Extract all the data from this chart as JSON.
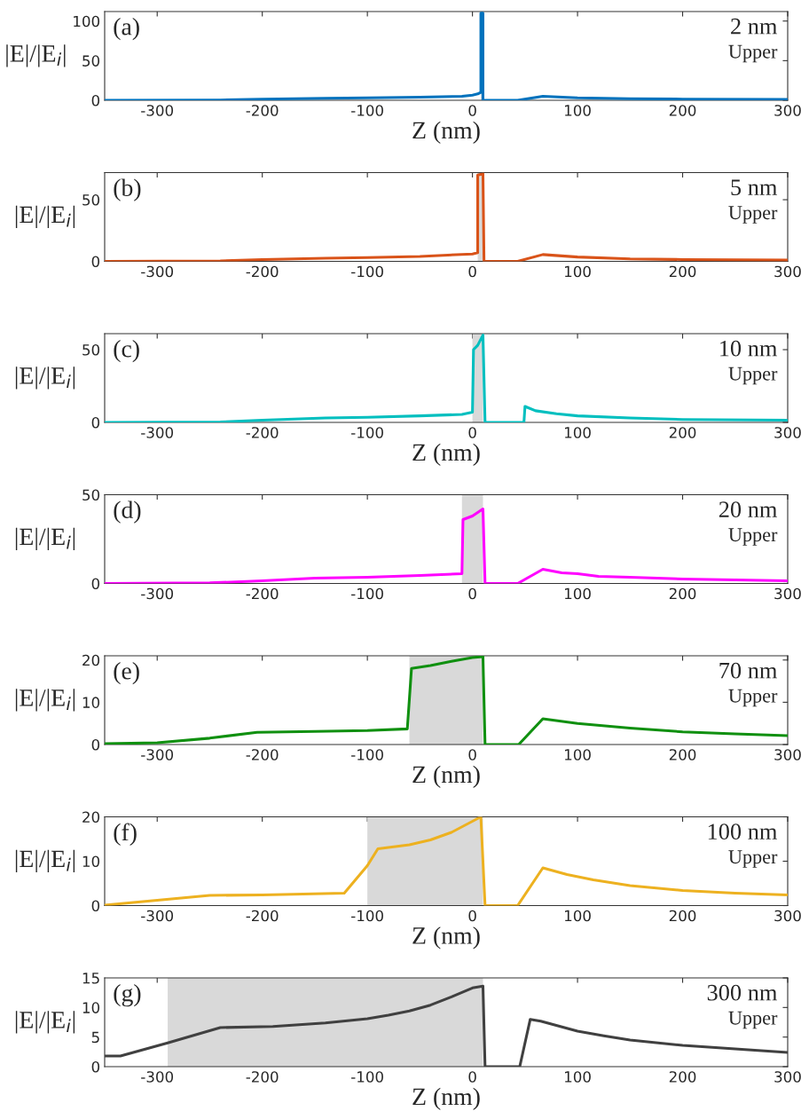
{
  "chart_data": [
    {
      "type": "line",
      "ylabel": "|E|/|E$_{i}$|",
      "xlabel": "Z (nm)",
      "annotations": [
        "(a)",
        "2 nm",
        "Upper"
      ],
      "xlim": [
        -350,
        300
      ],
      "xticks": [
        -300,
        -200,
        -100,
        0,
        100,
        200,
        300
      ],
      "ylim": [
        0,
        112
      ],
      "yticks": [
        0,
        50,
        100
      ],
      "grid": false,
      "legend": false,
      "bands": [
        {
          "axis": "x",
          "from": 8,
          "to": 10,
          "color": "#d9d9d9"
        }
      ],
      "series": [
        {
          "color": "#0072bd",
          "x": [
            -350,
            -240,
            -200,
            -140,
            -100,
            -50,
            -10,
            0,
            5,
            8,
            8,
            10,
            10,
            43,
            67,
            100,
            150,
            200,
            300
          ],
          "values": [
            0,
            0.3,
            1.5,
            2.5,
            3,
            4,
            5,
            6.5,
            8,
            10,
            110,
            110,
            0,
            0,
            5,
            3,
            2,
            1.5,
            1
          ]
        }
      ]
    },
    {
      "type": "line",
      "ylabel": "|E|/|E$_{i}$|",
      "annotations": [
        "(b)",
        "5 nm",
        "Upper"
      ],
      "xlim": [
        -350,
        300
      ],
      "xticks": [
        -300,
        -200,
        -100,
        0,
        100,
        200,
        300
      ],
      "ylim": [
        0,
        72
      ],
      "yticks": [
        0,
        50
      ],
      "grid": false,
      "legend": false,
      "bands": [
        {
          "axis": "x",
          "from": 5,
          "to": 10,
          "color": "#d9d9d9"
        }
      ],
      "series": [
        {
          "color": "#d95319",
          "x": [
            -350,
            -240,
            -200,
            -140,
            -100,
            -50,
            0,
            5,
            5,
            10,
            11,
            43,
            67,
            100,
            150,
            200,
            300
          ],
          "values": [
            0,
            0.3,
            1.5,
            2.5,
            3,
            4,
            6,
            7,
            70,
            71,
            0,
            0,
            5.5,
            3.5,
            2,
            1.5,
            1
          ]
        }
      ]
    },
    {
      "type": "line",
      "ylabel": "|E|/|E$_{i}$|",
      "xlabel": "Z (nm)",
      "annotations": [
        "(c)",
        "10 nm",
        "Upper"
      ],
      "xlim": [
        -350,
        300
      ],
      "xticks": [
        -300,
        -200,
        -100,
        0,
        100,
        200,
        300
      ],
      "ylim": [
        0,
        61
      ],
      "yticks": [
        0,
        50
      ],
      "grid": false,
      "legend": false,
      "bands": [
        {
          "axis": "x",
          "from": 0,
          "to": 10,
          "color": "#d9d9d9"
        }
      ],
      "series": [
        {
          "color": "#00bfbf",
          "x": [
            -350,
            -240,
            -200,
            -140,
            -100,
            -50,
            -10,
            0,
            1,
            5,
            10,
            12,
            49,
            50,
            60,
            80,
            100,
            150,
            200,
            300
          ],
          "values": [
            0,
            0.3,
            1.5,
            3,
            3.5,
            4.5,
            5.5,
            7,
            50,
            53,
            60,
            0,
            0,
            11,
            8,
            6,
            4.5,
            3,
            2,
            1.5
          ]
        }
      ]
    },
    {
      "type": "line",
      "ylabel": "|E|/|E$_{i}$|",
      "annotations": [
        "(d)",
        "20 nm",
        "Upper"
      ],
      "xlim": [
        -350,
        300
      ],
      "xticks": [
        -300,
        -200,
        -100,
        0,
        100,
        200,
        300
      ],
      "ylim": [
        0,
        50
      ],
      "yticks": [
        0,
        50
      ],
      "grid": false,
      "legend": false,
      "bands": [
        {
          "axis": "x",
          "from": -10,
          "to": 10,
          "color": "#d9d9d9"
        }
      ],
      "series": [
        {
          "color": "#ff00ff",
          "x": [
            -350,
            -250,
            -200,
            -150,
            -100,
            -50,
            -10,
            -9,
            0,
            10,
            12,
            43,
            67,
            85,
            100,
            120,
            150,
            200,
            300
          ],
          "values": [
            0,
            0.3,
            1.5,
            3,
            3.5,
            4.5,
            5.5,
            36,
            38,
            42,
            0,
            0,
            8,
            6,
            5.5,
            4,
            3.5,
            2.5,
            1.5
          ]
        }
      ]
    },
    {
      "type": "line",
      "ylabel": "|E|/|E$_{i}$|",
      "xlabel": "Z (nm)",
      "annotations": [
        "(e)",
        "70 nm",
        "Upper"
      ],
      "xlim": [
        -350,
        300
      ],
      "xticks": [
        -300,
        -200,
        -100,
        0,
        100,
        200,
        300
      ],
      "ylim": [
        0,
        21
      ],
      "yticks": [
        0,
        10,
        20
      ],
      "grid": false,
      "legend": false,
      "bands": [
        {
          "axis": "x",
          "from": -60,
          "to": 10,
          "color": "#d9d9d9"
        }
      ],
      "series": [
        {
          "color": "#109010",
          "x": [
            -350,
            -300,
            -250,
            -205,
            -150,
            -100,
            -62,
            -58,
            -40,
            -20,
            0,
            10,
            12,
            44,
            67,
            100,
            150,
            200,
            250,
            300
          ],
          "values": [
            0.2,
            0.4,
            1.5,
            2.9,
            3.1,
            3.3,
            3.7,
            18,
            18.7,
            19.7,
            20.6,
            20.8,
            0,
            0,
            6.1,
            5,
            3.9,
            3,
            2.5,
            2.1
          ]
        }
      ]
    },
    {
      "type": "line",
      "ylabel": "|E|/|E$_{i}$|",
      "xlabel": "Z (nm)",
      "annotations": [
        "(f)",
        "100 nm",
        "Upper"
      ],
      "xlim": [
        -350,
        300
      ],
      "xticks": [
        -300,
        -200,
        -100,
        0,
        100,
        200,
        300
      ],
      "ylim": [
        0,
        20
      ],
      "yticks": [
        0,
        10,
        20
      ],
      "grid": false,
      "legend": false,
      "bands": [
        {
          "axis": "x",
          "from": -100,
          "to": 10,
          "color": "#d9d9d9"
        }
      ],
      "series": [
        {
          "color": "#edb120",
          "x": [
            -350,
            -300,
            -250,
            -200,
            -122,
            -100,
            -90,
            -60,
            -40,
            -20,
            0,
            8,
            12,
            43,
            67,
            90,
            115,
            150,
            200,
            250,
            300
          ],
          "values": [
            0.1,
            1.2,
            2.3,
            2.4,
            2.8,
            9,
            12.8,
            13.7,
            14.8,
            16.5,
            19,
            20,
            0,
            0,
            8.5,
            7,
            5.8,
            4.5,
            3.4,
            2.8,
            2.4
          ]
        }
      ]
    },
    {
      "type": "line",
      "ylabel": "|E|/|E$_{i}$|",
      "xlabel": "Z (nm)",
      "annotations": [
        "(g)",
        "300 nm",
        "Upper"
      ],
      "xlim": [
        -350,
        300
      ],
      "xticks": [
        -300,
        -200,
        -100,
        0,
        100,
        200,
        300
      ],
      "ylim": [
        0,
        15
      ],
      "yticks": [
        0,
        5,
        10,
        15
      ],
      "grid": false,
      "legend": false,
      "bands": [
        {
          "axis": "x",
          "from": -290,
          "to": 10,
          "color": "#d9d9d9"
        }
      ],
      "series": [
        {
          "color": "#404040",
          "x": [
            -350,
            -335,
            -290,
            -240,
            -190,
            -140,
            -100,
            -80,
            -60,
            -40,
            -20,
            0,
            10,
            12,
            45,
            55,
            65,
            100,
            125,
            150,
            200,
            250,
            300
          ],
          "values": [
            1.8,
            1.8,
            4,
            6.6,
            6.8,
            7.4,
            8.1,
            8.7,
            9.4,
            10.4,
            11.8,
            13.3,
            13.6,
            0,
            0,
            8,
            7.7,
            6,
            5.2,
            4.5,
            3.6,
            3,
            2.4
          ]
        }
      ]
    }
  ]
}
